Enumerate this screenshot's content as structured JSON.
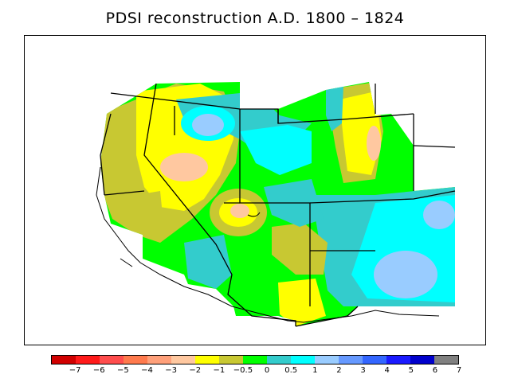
{
  "title": "PDSI reconstruction A.D. 1800 – 1824",
  "colorbar": {
    "colors": [
      "#d10000",
      "#ff1a1a",
      "#ff4d4d",
      "#ff7a4d",
      "#ffa07a",
      "#ffc8a0",
      "#ffff00",
      "#c8c832",
      "#00ff00",
      "#33cccc",
      "#00ffff",
      "#99ccff",
      "#6699ff",
      "#3366ff",
      "#1a1aff",
      "#0000cc",
      "#808080"
    ],
    "labels": [
      "−7",
      "−6",
      "−5",
      "−4",
      "−3",
      "−2",
      "−1",
      "−0.5",
      "0",
      "0.5",
      "1",
      "2",
      "3",
      "4",
      "5",
      "6",
      "7"
    ]
  }
}
